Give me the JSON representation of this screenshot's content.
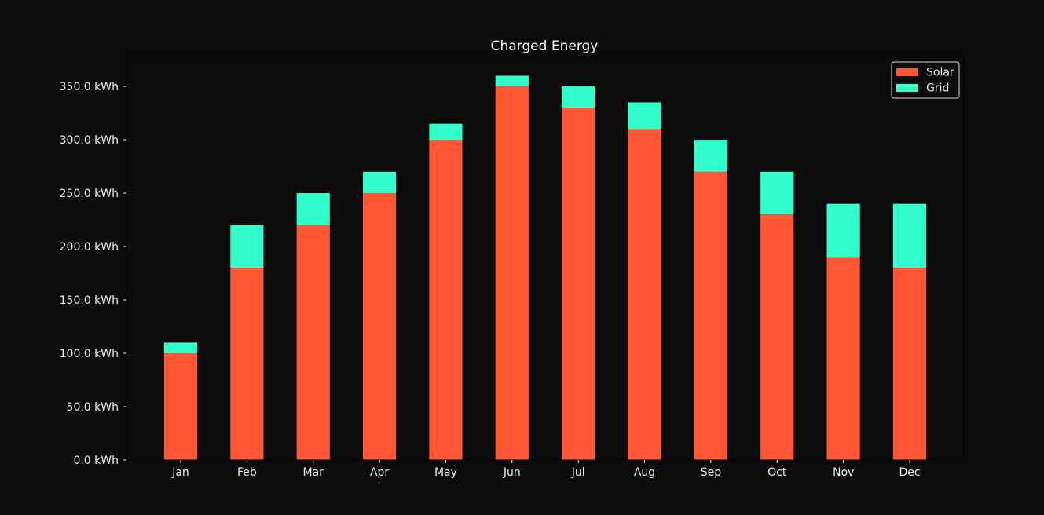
{
  "chart_data": {
    "type": "bar",
    "stacked": true,
    "title": "Charged Energy",
    "xlabel": "",
    "ylabel": "",
    "categories": [
      "Jan",
      "Feb",
      "Mar",
      "Apr",
      "May",
      "Jun",
      "Jul",
      "Aug",
      "Sep",
      "Oct",
      "Nov",
      "Dec"
    ],
    "series": [
      {
        "name": "Solar",
        "color": "#ff5733",
        "values": [
          100,
          180,
          220,
          250,
          300,
          350,
          330,
          310,
          270,
          230,
          190,
          180
        ]
      },
      {
        "name": "Grid",
        "color": "#33ffcc",
        "values": [
          10,
          40,
          30,
          20,
          15,
          10,
          20,
          25,
          30,
          40,
          50,
          60
        ]
      }
    ],
    "ylim": [
      0,
      378
    ],
    "yticks": [
      0,
      50,
      100,
      150,
      200,
      250,
      300,
      350
    ],
    "ytick_labels": [
      "0.0 kWh",
      "50.0 kWh",
      "100.0 kWh",
      "150.0 kWh",
      "200.0 kWh",
      "250.0 kWh",
      "300.0 kWh",
      "350.0 kWh"
    ],
    "grid": false,
    "legend_position": "top-right",
    "background_color": "#0b0b0b",
    "text_color": "#f0f0f0"
  }
}
